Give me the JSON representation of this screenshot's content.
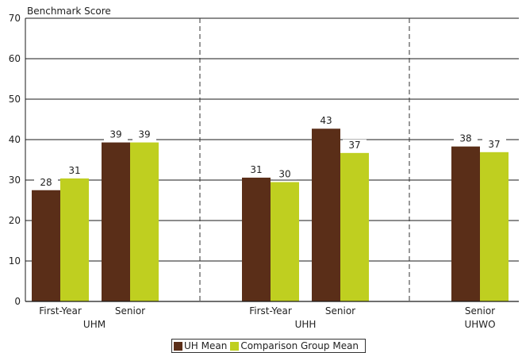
{
  "chart_data": {
    "type": "bar",
    "ylabel": "Benchmark Score",
    "ylim": [
      0,
      70
    ],
    "yticks": [
      0,
      10,
      20,
      30,
      40,
      50,
      60,
      70
    ],
    "grid": true,
    "groups": [
      {
        "name": "UHM",
        "categories": [
          "First-Year",
          "Senior"
        ]
      },
      {
        "name": "UHH",
        "categories": [
          "First-Year",
          "Senior"
        ]
      },
      {
        "name": "UHWO",
        "categories": [
          "Senior"
        ]
      }
    ],
    "series": [
      {
        "name": "UH Mean",
        "color": "#5a2e18",
        "values": [
          27.5,
          39.3,
          30.6,
          42.7,
          38.3
        ]
      },
      {
        "name": "Comparison Group Mean",
        "color": "#bfcf20",
        "values": [
          30.4,
          39.3,
          29.5,
          36.7,
          36.9
        ]
      }
    ],
    "data_labels": {
      "UH Mean": [
        "28",
        "39",
        "31",
        "43",
        "38"
      ],
      "Comparison Group Mean": [
        "31",
        "39",
        "30",
        "37",
        "37"
      ]
    },
    "legend_position": "bottom"
  }
}
